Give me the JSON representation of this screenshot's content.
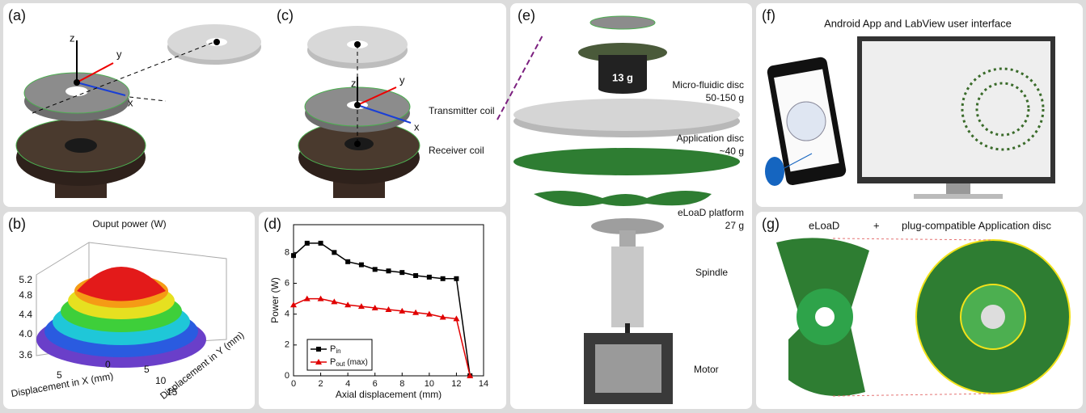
{
  "panels": {
    "a": {
      "label": "(a)",
      "axes": [
        "z",
        "y",
        "x"
      ]
    },
    "b": {
      "label": "(b)",
      "title": "Ouput power (W)",
      "z_ticks": [
        "3.6",
        "4.0",
        "4.4",
        "4.8",
        "5.2"
      ],
      "x_label": "Displacement in X (mm)",
      "y_label": "Displacement in Y (mm)",
      "x_ticks": [
        "5",
        "0"
      ],
      "y_ticks": [
        "5",
        "10",
        "15"
      ]
    },
    "c": {
      "label": "(c)",
      "axes": [
        "z",
        "y",
        "x"
      ],
      "transmitter": "Transmitter coil",
      "receiver": "Receiver coil"
    },
    "e": {
      "label": "(e)",
      "weight": "13 g",
      "items": [
        [
          "Micro-fluidic disc",
          "50-150 g"
        ],
        [
          "Application disc",
          "~40 g"
        ],
        [
          "eLoaD platform",
          "27 g"
        ],
        [
          "Spindle"
        ],
        [
          "Motor"
        ]
      ]
    },
    "f": {
      "label": "(f)",
      "title": "Android App and LabView user interface"
    },
    "g": {
      "label": "(g)",
      "left": "eLoaD",
      "plus": "+",
      "right": "plug-compatible Application disc"
    }
  },
  "chart_data": {
    "type": "line",
    "label": "(d)",
    "x_label": "Axial displacement (mm)",
    "y_label": "Power (W)",
    "x": [
      0,
      1,
      2,
      3,
      4,
      5,
      6,
      7,
      8,
      9,
      10,
      11,
      12,
      13
    ],
    "series": [
      {
        "name": {
          "main": "P",
          "sub": "in"
        },
        "color": "#000000",
        "marker": "square",
        "values": [
          7.8,
          8.6,
          8.6,
          8.0,
          7.4,
          7.2,
          6.9,
          6.8,
          6.7,
          6.5,
          6.4,
          6.3,
          6.3,
          0
        ]
      },
      {
        "name": {
          "main": "P",
          "sub": "out",
          "suffix": " (max)"
        },
        "color": "#e00000",
        "marker": "triangle",
        "values": [
          4.6,
          5.0,
          5.0,
          4.8,
          4.6,
          4.5,
          4.4,
          4.3,
          4.2,
          4.1,
          4.0,
          3.8,
          3.7,
          0
        ]
      }
    ],
    "xlim": [
      0,
      14
    ],
    "xticks": [
      0,
      2,
      4,
      6,
      8,
      10,
      12,
      14
    ],
    "ylim": [
      0,
      9.8
    ],
    "yticks": [
      0,
      2,
      4,
      6,
      8
    ]
  }
}
